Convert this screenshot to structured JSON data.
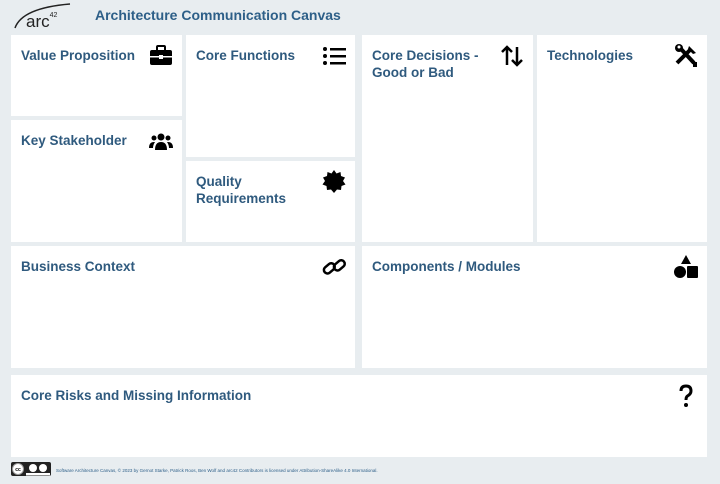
{
  "header": {
    "logo": "arc42",
    "title": "Architecture Communication Canvas"
  },
  "panels": {
    "value_proposition": {
      "title": "Value Proposition",
      "icon": "briefcase-icon"
    },
    "key_stakeholder": {
      "title": "Key Stakeholder",
      "icon": "users-icon"
    },
    "core_functions": {
      "title": "Core Functions",
      "icon": "list-icon"
    },
    "quality_requirements": {
      "title": "Quality Requirements",
      "icon": "badge-icon"
    },
    "core_decisions": {
      "title": "Core Decisions - Good or Bad",
      "icon": "arrows-up-down-icon"
    },
    "technologies": {
      "title": "Technologies",
      "icon": "tools-icon"
    },
    "business_context": {
      "title": "Business Context",
      "icon": "link-icon"
    },
    "components": {
      "title": "Components / Modules",
      "icon": "shapes-icon"
    },
    "core_risks": {
      "title": "Core Risks and Missing Information",
      "icon": "question-icon"
    }
  },
  "footer": {
    "license_badge": "CC BY SA",
    "text": "Software Architecture Canvas, © 2023 by Gernot Starke, Patrick Roos, Ben Wolf and arc42 Contributors is licensed under Attribution-ShareAlike 4.0 International."
  }
}
